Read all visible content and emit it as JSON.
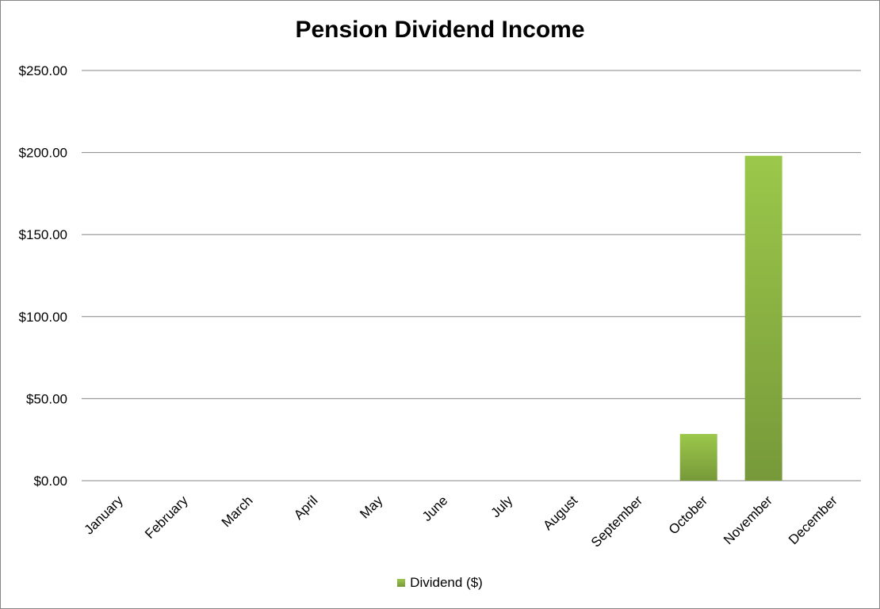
{
  "chart_data": {
    "type": "bar",
    "title": "Pension Dividend Income",
    "xlabel": "",
    "ylabel": "",
    "categories": [
      "January",
      "February",
      "March",
      "April",
      "May",
      "June",
      "July",
      "August",
      "September",
      "October",
      "November",
      "December"
    ],
    "series": [
      {
        "name": "Dividend ($)",
        "values": [
          0,
          0,
          0,
          0,
          0,
          0,
          0,
          0,
          0,
          28.5,
          198,
          0
        ]
      }
    ],
    "yticks": [
      "$0.00",
      "$50.00",
      "$100.00",
      "$150.00",
      "$200.00",
      "$250.00"
    ],
    "ylim": [
      0,
      250
    ],
    "ytick_step": 50,
    "grid": true,
    "legend_position": "bottom",
    "colors": {
      "bar_top": "#9bc84a",
      "bar_bottom": "#77993a",
      "grid": "#868686"
    }
  }
}
